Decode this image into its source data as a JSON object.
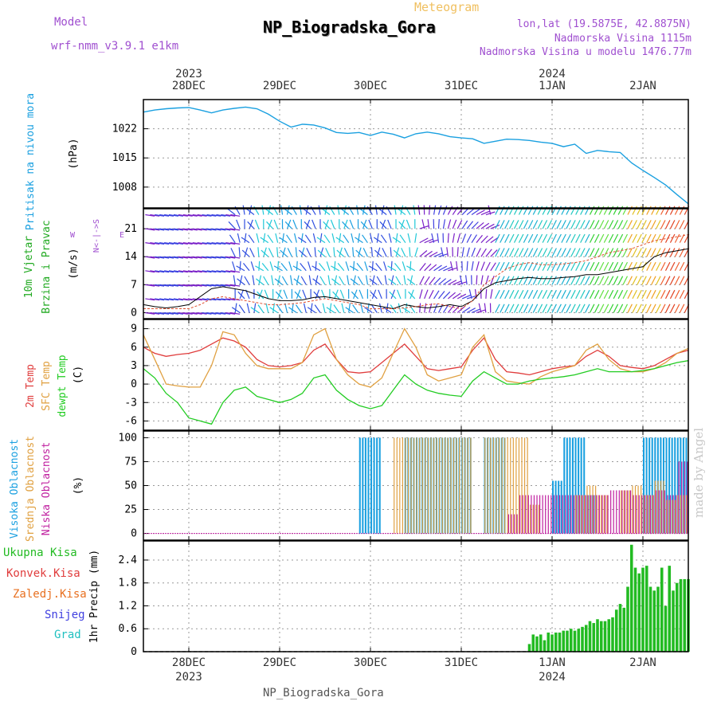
{
  "header": {
    "model_label": "Model",
    "model_name": "wrf-nmm_v3.9.1 e1km",
    "subtitle": "Meteogram",
    "station": "NP_Biogradska_Gora",
    "lonlat": "lon,lat (19.5875E, 42.8875N)",
    "elevation": "Nadmorska Visina 1115m",
    "model_elevation": "Nadmorska Visina u modelu 1476.77m",
    "watermark": "made by Angel",
    "footer": "NP_Biogradska_Gora"
  },
  "colors": {
    "pressure": "#1aa0e0",
    "wind_label": "#22aa22",
    "temp2m": "#e03c3c",
    "sfc": "#e0a040",
    "dewpt": "#22cc22",
    "high_cloud": "#1aa0e0",
    "mid_cloud": "#e0a040",
    "low_cloud": "#c020a0",
    "rain": "#22bb22",
    "conv_rain": "#e03c3c",
    "frz_rain": "#e87020",
    "snow": "#4040e0",
    "hail": "#20c0c0",
    "header_purple": "#a050d0",
    "header_orange": "#f0c060"
  },
  "time_axis": {
    "days": [
      {
        "label": "28DEC",
        "year": "2023",
        "hour": 0
      },
      {
        "label": "29DEC",
        "year": "",
        "hour": 24
      },
      {
        "label": "30DEC",
        "year": "",
        "hour": 48
      },
      {
        "label": "31DEC",
        "year": "",
        "hour": 72
      },
      {
        "label": "1JAN",
        "year": "2024",
        "hour": 96
      },
      {
        "label": "2JAN",
        "year": "",
        "hour": 120
      }
    ],
    "start_hour": -12,
    "end_hour": 132
  },
  "chart_data": [
    {
      "type": "line",
      "name": "pressure",
      "ylabel_lines": [
        "Pritisak na nivou mora",
        "(hPa)"
      ],
      "yticks": [
        1008,
        1015,
        1022
      ],
      "ylim": [
        1003,
        1029
      ],
      "x": [
        -12,
        -9,
        -6,
        -3,
        0,
        3,
        6,
        9,
        12,
        15,
        18,
        21,
        24,
        27,
        30,
        33,
        36,
        39,
        42,
        45,
        48,
        51,
        54,
        57,
        60,
        63,
        66,
        69,
        72,
        75,
        78,
        81,
        84,
        87,
        90,
        93,
        96,
        99,
        102,
        105,
        108,
        111,
        114,
        117,
        120,
        123,
        126,
        129,
        132
      ],
      "values": [
        1026,
        1026.5,
        1026.8,
        1027,
        1027.1,
        1026.5,
        1025.8,
        1026.5,
        1026.9,
        1027.2,
        1026.8,
        1025.5,
        1023.8,
        1022.4,
        1023.1,
        1022.9,
        1022.2,
        1021.1,
        1020.9,
        1021.1,
        1020.4,
        1021.2,
        1020.7,
        1019.8,
        1020.8,
        1021.2,
        1020.8,
        1020.1,
        1019.8,
        1019.6,
        1018.5,
        1019,
        1019.5,
        1019.4,
        1019.2,
        1018.8,
        1018.5,
        1017.7,
        1018.3,
        1016.1,
        1016.8,
        1016.5,
        1016.3,
        1013.8,
        1012,
        1010.3,
        1008.5,
        1006.2,
        1004
      ]
    },
    {
      "type": "line",
      "name": "wind",
      "ylabel_lines": [
        "10m Vjetar",
        "Brzina i Pravac",
        "(m/s)"
      ],
      "compass": "N<-|->S",
      "compass_w": "W",
      "compass_e": "E",
      "yticks": [
        0,
        7,
        14,
        21
      ],
      "ylim": [
        -1.5,
        26
      ],
      "x": [
        -12,
        -9,
        -6,
        -3,
        0,
        3,
        6,
        9,
        12,
        15,
        18,
        21,
        24,
        27,
        30,
        33,
        36,
        39,
        42,
        45,
        48,
        51,
        54,
        57,
        60,
        63,
        66,
        69,
        72,
        75,
        78,
        81,
        84,
        87,
        90,
        93,
        96,
        99,
        102,
        105,
        108,
        111,
        114,
        117,
        120,
        123,
        126,
        129,
        132
      ],
      "speed": [
        2,
        1.5,
        1.2,
        1.5,
        2,
        4,
        6,
        6.5,
        6,
        5.5,
        4.5,
        3.5,
        3,
        3,
        3.2,
        3.8,
        4,
        3.5,
        3,
        2.5,
        2,
        1.5,
        1,
        2,
        1.5,
        1.2,
        1.5,
        2,
        1.5,
        3,
        6,
        7.5,
        8,
        8.5,
        8.8,
        8.5,
        8.5,
        8.8,
        9,
        9.5,
        9.5,
        10,
        10.5,
        11,
        11.5,
        14,
        15,
        15.5,
        16
      ],
      "gust": [
        1,
        1,
        1,
        1,
        1,
        2,
        3.5,
        4,
        3.5,
        3,
        2.5,
        2,
        2,
        2.2,
        2.5,
        3,
        3.5,
        3,
        2.5,
        2,
        1,
        1,
        1,
        1.2,
        1.5,
        2,
        2.2,
        1.5,
        1,
        3,
        7,
        9,
        11,
        12,
        12.5,
        12,
        12,
        12.2,
        12.5,
        13,
        14,
        15,
        15.5,
        16,
        17,
        18,
        18.5,
        19,
        19.5
      ]
    },
    {
      "type": "line",
      "name": "temperature",
      "ylabel_lines": [
        "2m Temp",
        "SFC Temp",
        "dewpt Temp",
        "(C)"
      ],
      "yticks": [
        -6,
        -3,
        0,
        3,
        6,
        9
      ],
      "ylim": [
        -7.5,
        10.5
      ],
      "x": [
        -12,
        -9,
        -6,
        -3,
        0,
        3,
        6,
        9,
        12,
        15,
        18,
        21,
        24,
        27,
        30,
        33,
        36,
        39,
        42,
        45,
        48,
        51,
        54,
        57,
        60,
        63,
        66,
        69,
        72,
        75,
        78,
        81,
        84,
        87,
        90,
        93,
        96,
        99,
        102,
        105,
        108,
        111,
        114,
        117,
        120,
        123,
        126,
        129,
        132
      ],
      "series": [
        {
          "name": "2m Temp",
          "values": [
            6,
            5,
            4.5,
            4.8,
            5,
            5.5,
            6.5,
            7.5,
            7,
            6,
            4,
            3,
            2.8,
            3,
            3.5,
            5.5,
            6.5,
            4,
            2,
            1.8,
            2,
            3.5,
            5,
            6.5,
            4.5,
            2.5,
            2.2,
            2.5,
            2.8,
            5.5,
            7.5,
            4,
            2,
            1.8,
            1.5,
            2,
            2.5,
            2.8,
            3,
            4.5,
            5.5,
            4.5,
            3,
            2.7,
            2.5,
            3,
            4,
            5,
            5.5
          ]
        },
        {
          "name": "SFC Temp",
          "values": [
            8,
            4,
            0,
            -0.3,
            -0.5,
            -0.5,
            3,
            8.5,
            8,
            5,
            3,
            2.5,
            2.5,
            2.5,
            3.5,
            8,
            9,
            4,
            1.5,
            0,
            -0.5,
            1,
            5,
            9,
            6,
            1.5,
            0.5,
            1,
            1.5,
            6,
            8,
            2,
            0.5,
            0.2,
            0,
            1.2,
            2,
            2.5,
            3,
            5.5,
            6.5,
            4,
            2.5,
            2,
            2,
            2.5,
            3.5,
            5,
            5.8
          ]
        },
        {
          "name": "dewpt Temp",
          "values": [
            2.5,
            1,
            -1.5,
            -3,
            -5.5,
            -6,
            -6.5,
            -3,
            -1,
            -0.5,
            -2,
            -2.5,
            -3,
            -2.5,
            -1.5,
            1,
            1.5,
            -1,
            -2.5,
            -3.5,
            -4,
            -3.5,
            -1,
            1.5,
            0,
            -1,
            -1.5,
            -1.8,
            -2,
            0.5,
            2,
            1,
            0,
            0,
            0.5,
            0.8,
            1,
            1.2,
            1.5,
            2,
            2.5,
            2,
            2,
            2,
            2.2,
            2.5,
            3,
            3.5,
            3.8
          ]
        }
      ]
    },
    {
      "type": "bar",
      "name": "cloud",
      "ylabel_lines": [
        "Visoka Oblacnost",
        "Srednja Oblacnost",
        "Niska Oblacnost",
        "(%)"
      ],
      "yticks": [
        0,
        25,
        50,
        75,
        100
      ],
      "ylim": [
        -7,
        107
      ],
      "x": [
        -12,
        -9,
        -6,
        -3,
        0,
        3,
        6,
        9,
        12,
        15,
        18,
        21,
        24,
        27,
        30,
        33,
        36,
        39,
        42,
        45,
        48,
        51,
        54,
        57,
        60,
        63,
        66,
        69,
        72,
        75,
        78,
        81,
        84,
        87,
        90,
        93,
        96,
        99,
        102,
        105,
        108,
        111,
        114,
        117,
        120,
        123,
        126,
        129,
        132
      ],
      "series": [
        {
          "name": "Visoka Oblacnost",
          "values": [
            0,
            0,
            0,
            0,
            0,
            0,
            0,
            0,
            0,
            0,
            0,
            0,
            0,
            0,
            0,
            0,
            0,
            0,
            0,
            100,
            100,
            0,
            0,
            100,
            100,
            100,
            100,
            100,
            100,
            0,
            100,
            100,
            0,
            0,
            0,
            0,
            55,
            100,
            100,
            40,
            0,
            0,
            0,
            0,
            100,
            100,
            100,
            100,
            65
          ]
        },
        {
          "name": "Srednja Oblacnost",
          "values": [
            0,
            0,
            0,
            0,
            0,
            0,
            0,
            0,
            0,
            0,
            0,
            0,
            0,
            0,
            0,
            0,
            0,
            0,
            0,
            0,
            0,
            0,
            100,
            100,
            100,
            100,
            100,
            100,
            100,
            0,
            100,
            100,
            100,
            100,
            30,
            0,
            0,
            0,
            40,
            50,
            40,
            0,
            45,
            50,
            40,
            55,
            35,
            40,
            30
          ]
        },
        {
          "name": "Niska Oblacnost",
          "values": [
            0,
            0,
            0,
            0,
            0,
            0,
            0,
            0,
            0,
            0,
            0,
            0,
            0,
            0,
            0,
            0,
            0,
            0,
            0,
            0,
            0,
            0,
            0,
            0,
            0,
            0,
            0,
            0,
            0,
            0,
            0,
            0,
            20,
            40,
            40,
            40,
            40,
            40,
            40,
            40,
            40,
            45,
            45,
            40,
            40,
            45,
            40,
            75,
            55
          ]
        }
      ]
    },
    {
      "type": "bar",
      "name": "precip",
      "ylabel_lines": [
        "1hr Precip (mm)"
      ],
      "legend": [
        "Ukupna Kisa",
        "Konvek.Kisa",
        "Zaledj.Kisa",
        "Snijeg",
        "Grad"
      ],
      "yticks": [
        0,
        0.6,
        1.2,
        1.8,
        2.4
      ],
      "ylim": [
        0,
        2.9
      ],
      "x": [
        90,
        91,
        92,
        93,
        94,
        95,
        96,
        97,
        98,
        99,
        100,
        101,
        102,
        103,
        104,
        105,
        106,
        107,
        108,
        109,
        110,
        111,
        112,
        113,
        114,
        115,
        116,
        117,
        118,
        119,
        120,
        121,
        122,
        123,
        124,
        125,
        126,
        127,
        128,
        129,
        130,
        131,
        132
      ],
      "values": [
        0.2,
        0.45,
        0.4,
        0.45,
        0.3,
        0.5,
        0.45,
        0.5,
        0.5,
        0.55,
        0.55,
        0.6,
        0.55,
        0.6,
        0.65,
        0.7,
        0.8,
        0.75,
        0.85,
        0.8,
        0.8,
        0.85,
        0.9,
        1.1,
        1.25,
        1.15,
        1.7,
        2.8,
        2.2,
        2.05,
        2.2,
        2.25,
        1.7,
        1.6,
        1.7,
        2.2,
        1.2,
        2.25,
        1.6,
        1.8,
        1.9,
        1.9,
        1.9
      ]
    }
  ]
}
